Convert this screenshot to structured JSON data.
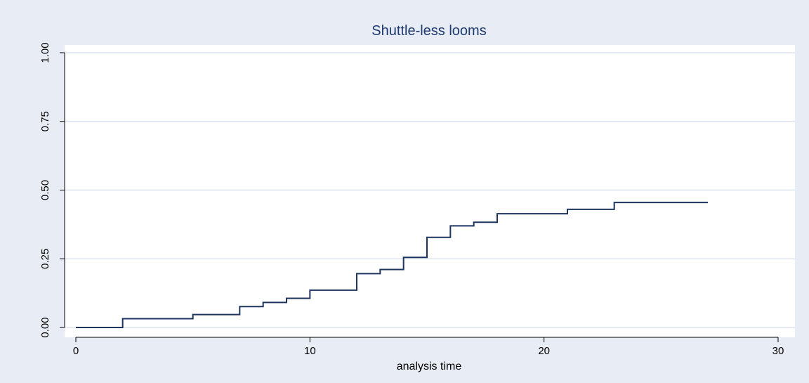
{
  "chart_data": {
    "type": "line",
    "step": "post",
    "title": "Shuttle-less looms",
    "xlabel": "analysis time",
    "ylabel": "",
    "xlim": [
      0,
      30
    ],
    "ylim": [
      0,
      1
    ],
    "x_ticks": [
      0,
      10,
      20,
      30
    ],
    "x_tick_labels": [
      "0",
      "10",
      "20",
      "30"
    ],
    "y_ticks": [
      0,
      0.25,
      0.5,
      0.75,
      1
    ],
    "y_tick_labels": [
      "0.00",
      "0.25",
      "0.50",
      "0.75",
      "1.00"
    ],
    "grid": true,
    "legend": "none",
    "colors": {
      "background": "#e8ecf4",
      "plot_area": "#ffffff",
      "grid": "#dde3ef",
      "line": "#1f3560",
      "title": "#1e3a70",
      "text": "#000000",
      "axis": "#000000"
    },
    "series": [
      {
        "x": [
          0,
          2,
          5,
          7,
          8,
          9,
          10,
          12,
          13,
          14,
          15,
          16,
          17,
          18,
          21,
          23,
          27
        ],
        "y": [
          0,
          0.032,
          0.047,
          0.076,
          0.091,
          0.106,
          0.136,
          0.196,
          0.211,
          0.255,
          0.328,
          0.37,
          0.383,
          0.414,
          0.43,
          0.455,
          0.455
        ]
      }
    ]
  }
}
